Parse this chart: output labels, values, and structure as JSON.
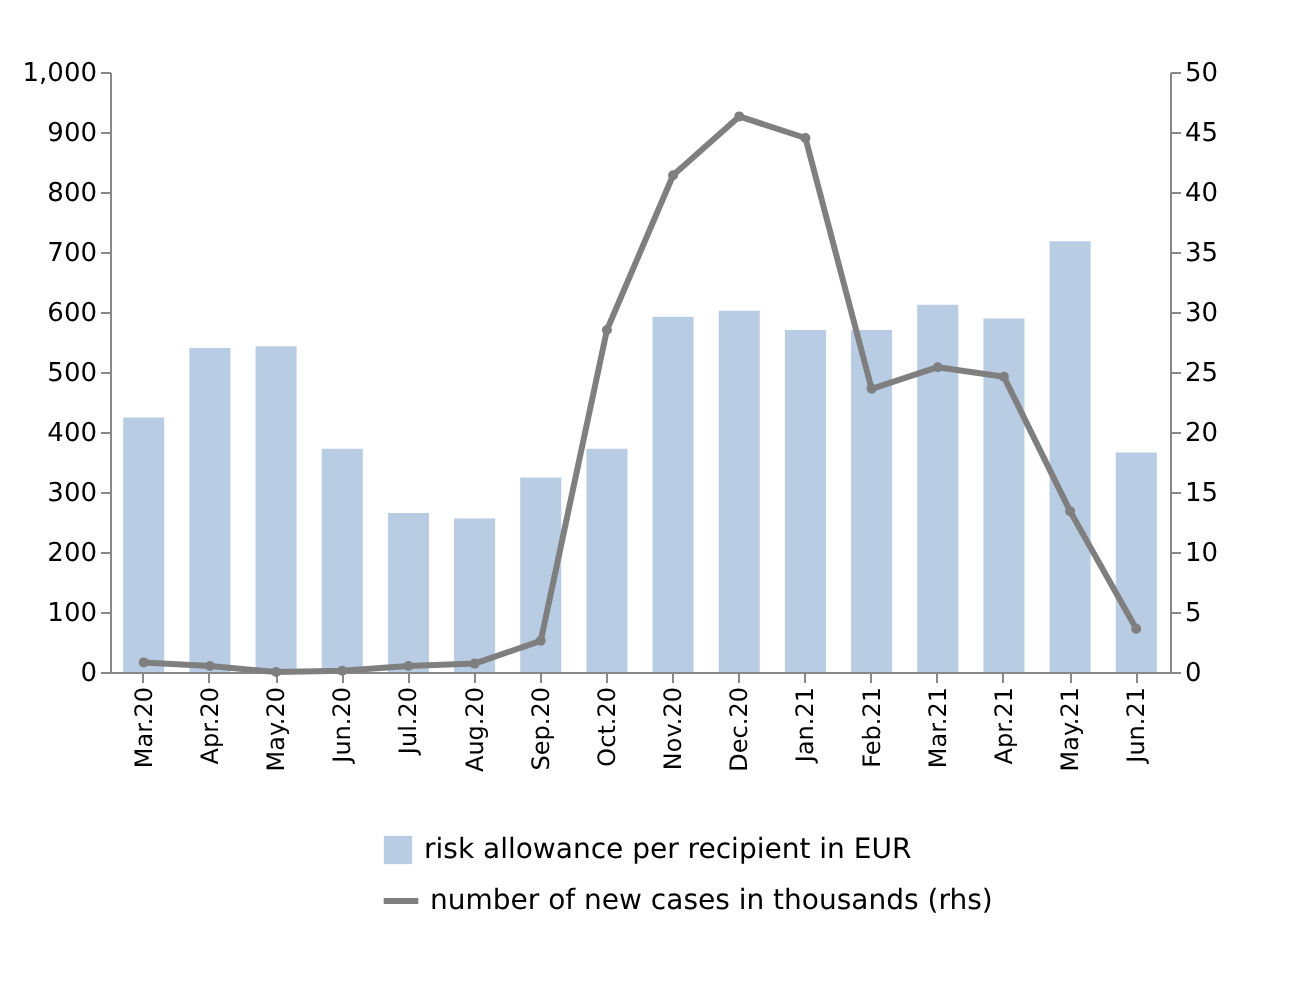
{
  "chart_data": {
    "type": "bar",
    "categories": [
      "Mar.20",
      "Apr.20",
      "May.20",
      "Jun.20",
      "Jul.20",
      "Aug.20",
      "Sep.20",
      "Oct.20",
      "Nov.20",
      "Dec.20",
      "Jan.21",
      "Feb.21",
      "Mar.21",
      "Apr.21",
      "May.21",
      "Jun.21"
    ],
    "series": [
      {
        "name": "risk allowance per recipient in EUR",
        "color": "#b8cce4",
        "values": [
          424,
          540,
          543,
          372,
          265,
          256,
          324,
          372,
          592,
          602,
          570,
          570,
          612,
          589,
          718,
          366
        ]
      },
      {
        "name": "number of new cases in thousands (rhs)",
        "type": "line",
        "axis": "y2",
        "color": "#7f7f7f",
        "values": [
          0.8,
          0.5,
          0,
          0.1,
          0.5,
          0.7,
          2.6,
          28.5,
          41.4,
          46.3,
          44.5,
          23.6,
          25.4,
          24.6,
          13.4,
          3.6
        ]
      }
    ],
    "ylim": [
      0,
      1000
    ],
    "yticks": [
      0,
      100,
      200,
      300,
      400,
      500,
      600,
      700,
      800,
      900,
      {
        "value": 1000,
        "label": "1,000"
      }
    ],
    "y2lim": [
      0,
      50
    ],
    "y2ticks": [
      0,
      5,
      10,
      15,
      20,
      25,
      30,
      35,
      40,
      45,
      50
    ],
    "legend": "bottom",
    "marker": "circle",
    "grid": false
  }
}
